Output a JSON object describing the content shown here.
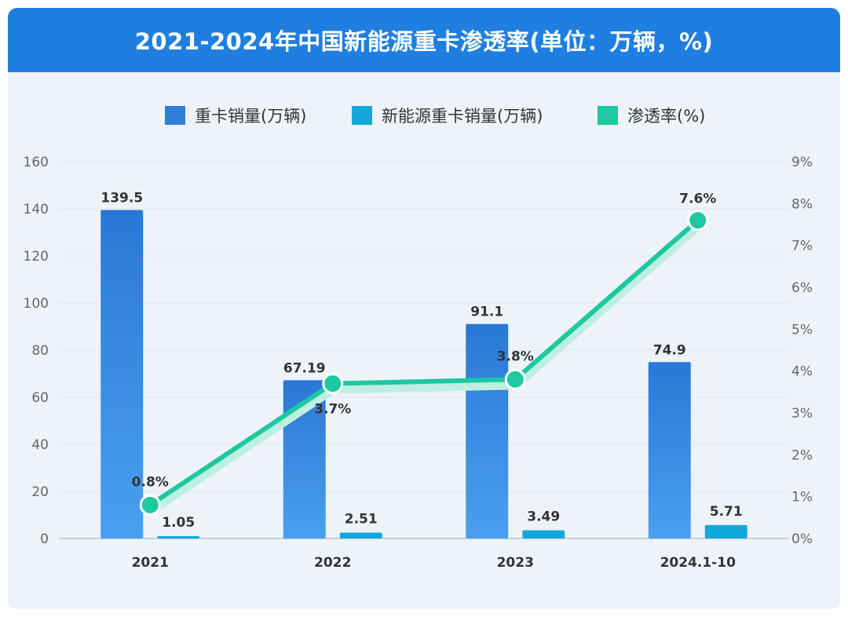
{
  "title": "2021-2024年中国新能源重卡渗透率(单位：万辆，%)",
  "chart_data": {
    "type": "bar",
    "categories": [
      "2021",
      "2022",
      "2023",
      "2024.1-10"
    ],
    "series": [
      {
        "name": "重卡销量(万辆)",
        "kind": "bar",
        "axis": "left",
        "color": "#2f7fd8",
        "values": [
          139.5,
          67.19,
          91.1,
          74.9
        ],
        "labels": [
          "139.5",
          "67.19",
          "91.1",
          "74.9"
        ]
      },
      {
        "name": "新能源重卡销量(万辆)",
        "kind": "bar",
        "axis": "left",
        "color": "#13a8dc",
        "values": [
          1.05,
          2.51,
          3.49,
          5.71
        ],
        "labels": [
          "1.05",
          "2.51",
          "3.49",
          "5.71"
        ]
      },
      {
        "name": "渗透率(%)",
        "kind": "line",
        "axis": "right",
        "color": "#1ec8a0",
        "values": [
          0.8,
          3.7,
          3.8,
          7.6
        ],
        "labels": [
          "0.8%",
          "3.7%",
          "3.8%",
          "7.6%"
        ]
      }
    ],
    "left_axis": {
      "min": 0,
      "max": 160,
      "ticks": [
        "0",
        "20",
        "40",
        "60",
        "80",
        "100",
        "120",
        "140",
        "160"
      ]
    },
    "right_axis": {
      "min": 0,
      "max": 9,
      "ticks": [
        "0%",
        "1%",
        "2%",
        "3%",
        "4%",
        "5%",
        "6%",
        "7%",
        "8%",
        "9%"
      ]
    },
    "legend_position": "top-center",
    "grid": true
  }
}
